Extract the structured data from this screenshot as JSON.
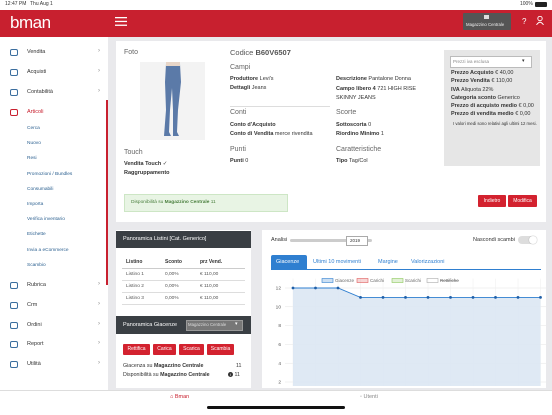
{
  "status_bar": {
    "time": "12:47 PM",
    "date": "Thu Aug 1",
    "battery": "100%"
  },
  "header": {
    "logo": "bman",
    "store_button": "Magazzino Centrale"
  },
  "sidebar": {
    "items": [
      "Vendita",
      "Acquisti",
      "Contabilità",
      "Articoli"
    ],
    "subitems": [
      "Cerca",
      "Nuovo",
      "Resi",
      "Promozioni / Bundles",
      "Consumabili",
      "Importa",
      "Verifica inventario",
      "Etichette",
      "Invia a eCommerce",
      "Scambio"
    ],
    "items_after": [
      "Rubrica",
      "Crm",
      "Ordini",
      "Report",
      "Utilità"
    ]
  },
  "product": {
    "photo_label": "Foto",
    "code_label": "Codice",
    "code": "B60V6507",
    "touch": {
      "title": "Touch",
      "fields": [
        [
          "Vendita Touch",
          "✓"
        ],
        [
          "Raggruppamento"
        ]
      ]
    },
    "campi": {
      "title": "Campi",
      "left": [
        [
          "Produttore",
          "Levi's"
        ],
        [
          "Dettagli",
          "Jeans"
        ]
      ],
      "right": [
        [
          "Descrizione",
          "Pantalone Donna"
        ],
        [
          "Campo libero 4",
          "721 HIGH RISE SKINNY JEANS"
        ]
      ]
    },
    "conti": {
      "title": "Conti",
      "fields": [
        [
          "Conto d'Acquisto"
        ],
        [
          "Conto di Vendita",
          "merce rivendita"
        ]
      ]
    },
    "scorte": {
      "title": "Scorte",
      "fields": [
        [
          "Sottoscorta",
          "0"
        ],
        [
          "Riordino Minimo",
          "1"
        ]
      ]
    },
    "punti": {
      "title": "Punti",
      "fields": [
        [
          "Punti",
          "0"
        ]
      ]
    },
    "caratteristiche": {
      "title": "Caratteristiche",
      "fields": [
        [
          "Tipo",
          "Tag/Col"
        ]
      ]
    },
    "prices": {
      "select": "Prezzi iva esclusa",
      "fields": [
        [
          "Prezzo Acquisto",
          "€ 40,00"
        ],
        [
          "Prezzo Vendita",
          "€ 110,00"
        ],
        [
          "IVA",
          "Aliquota 22%"
        ],
        [
          "Categoria sconto",
          "Generico"
        ],
        [
          "Prezzo di acquisto medio",
          "€ 0,00"
        ],
        [
          "Prezzo di vendita medio",
          "€ 0,00"
        ]
      ],
      "note": "I valori medi sono relativi agli ultimi 12 mesi."
    },
    "availability": {
      "label": "Disponibilità su",
      "store": "Magazzino Centrale",
      "value": 11
    },
    "buttons": [
      "Indietro",
      "Modifica"
    ]
  },
  "listini": {
    "title": "Panoramica Listini [Cat. Generico]",
    "columns": [
      "Listino",
      "Sconto",
      "prz Vend."
    ],
    "rows": [
      [
        "Listino 1",
        "0,00%",
        "€ 110,00"
      ],
      [
        "Listino 2",
        "0,00%",
        "€ 110,00"
      ],
      [
        "Listino 3",
        "0,00%",
        "€ 110,00"
      ]
    ]
  },
  "giacenze": {
    "title": "Panoramica Giacenze",
    "select": "Magazzino Centrale",
    "buttons": [
      "Rettifica",
      "Carica",
      "Scarica",
      "Scambia"
    ],
    "lines": [
      {
        "label": "Giacenza su",
        "store": "Magazzino Centrale",
        "value": 11
      },
      {
        "label": "Disponibilità su",
        "store": "Magazzino Centrale",
        "value": 11
      }
    ]
  },
  "analysis": {
    "label": "Analisi",
    "year": "2019",
    "toggle_label": "Nascondi scambi",
    "tabs": [
      "Giacenze",
      "Ultimi 10 movimenti",
      "Margine",
      "Valorizzazioni"
    ]
  },
  "chart_data": {
    "type": "line",
    "categories": [
      null,
      null,
      null,
      null,
      null,
      null,
      null,
      null,
      null,
      null,
      null,
      null
    ],
    "series": [
      {
        "name": "Giacenze",
        "color": "#2f7fd0",
        "values": [
          12,
          12,
          12,
          11,
          11,
          11,
          11,
          11,
          11,
          11,
          11,
          11
        ]
      }
    ],
    "hidden_series": [
      {
        "name": "Carichi",
        "color": "#e05a5a"
      },
      {
        "name": "Scarichi",
        "color": "#8cc85a"
      },
      {
        "name": "Rettifiche",
        "color": "#aaaaaa",
        "disabled": true
      }
    ],
    "ylim": [
      0,
      13
    ],
    "yticks": [
      2,
      4,
      6,
      8,
      10,
      12
    ],
    "grid": true,
    "area": true
  },
  "tab_bar": [
    "Bman",
    "Utenti"
  ]
}
